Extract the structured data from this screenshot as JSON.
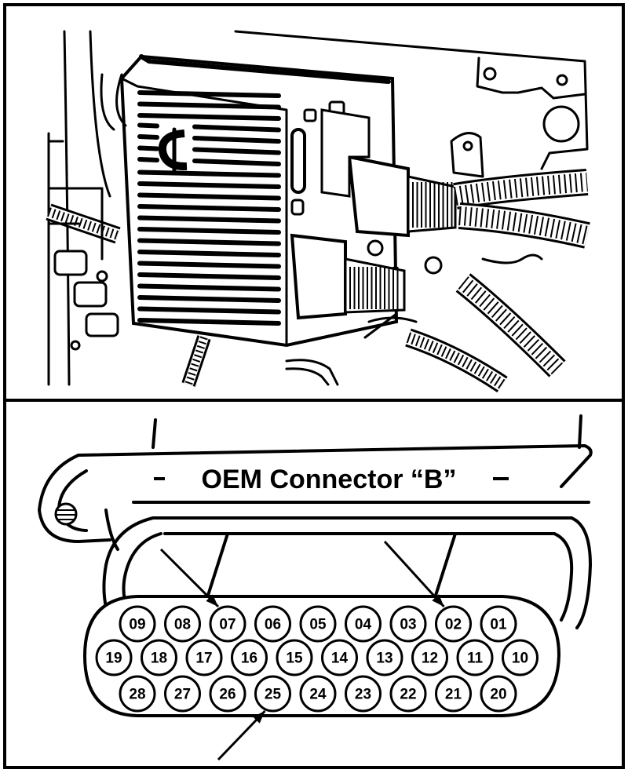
{
  "figure": {
    "top_panel": {
      "subject": "engine control module with connector harnesses",
      "logo_letter": "C"
    },
    "bottom_panel": {
      "title": "OEM Connector “B”",
      "pin_rows": [
        [
          "09",
          "08",
          "07",
          "06",
          "05",
          "04",
          "03",
          "02",
          "01"
        ],
        [
          "19",
          "18",
          "17",
          "16",
          "15",
          "14",
          "13",
          "12",
          "11",
          "10"
        ],
        [
          "28",
          "27",
          "26",
          "25",
          "24",
          "23",
          "22",
          "21",
          "20"
        ]
      ],
      "arrows": [
        {
          "points_to": "07"
        },
        {
          "points_to": "02"
        },
        {
          "points_to": "25"
        }
      ]
    }
  }
}
